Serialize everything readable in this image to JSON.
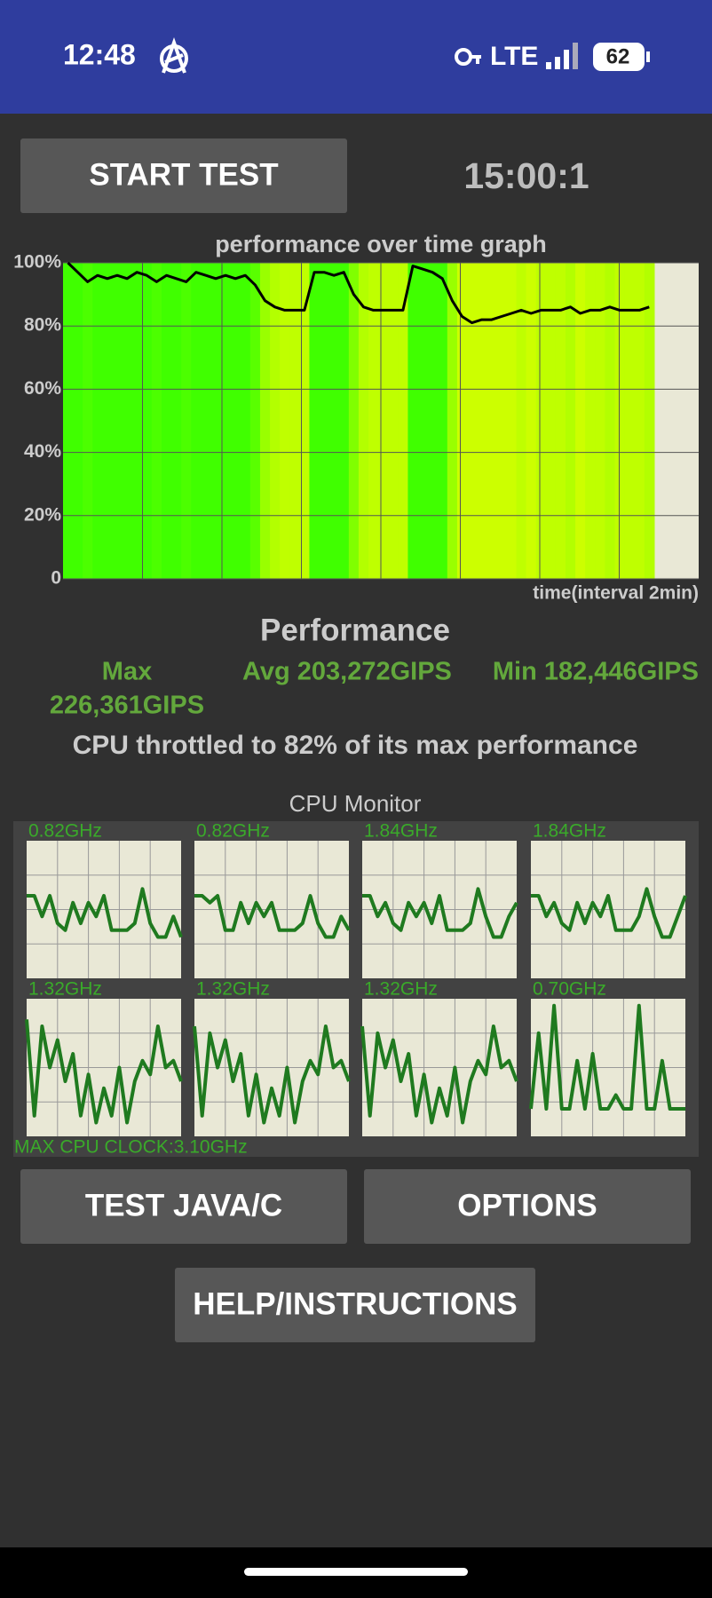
{
  "status_bar": {
    "time": "12:48",
    "network": "LTE",
    "battery": "62"
  },
  "start_button": "START TEST",
  "timer": "15:00:1",
  "chart_data": {
    "type": "line",
    "title": "performance over time graph",
    "x_label": "time(interval 2min)",
    "ylim": [
      0,
      100
    ],
    "yticks": [
      0,
      {
        "value": 20,
        "label": "20%"
      },
      {
        "value": 40,
        "label": "40%"
      },
      {
        "value": 60,
        "label": "60%"
      },
      {
        "value": 80,
        "label": "80%"
      },
      {
        "value": 100,
        "label": "100%"
      }
    ],
    "grid": true,
    "series": [
      {
        "color": "#000000",
        "values": [
          100,
          97,
          94,
          96,
          95,
          96,
          95,
          97,
          96,
          94,
          96,
          95,
          94,
          97,
          96,
          95,
          96,
          95,
          96,
          93,
          88,
          86,
          85,
          85,
          85,
          97,
          97,
          96,
          97,
          90,
          86,
          85,
          85,
          85,
          85,
          99,
          98,
          97,
          95,
          88,
          83,
          81,
          82,
          82,
          83,
          84,
          85,
          84,
          85,
          85,
          85,
          86,
          84,
          85,
          85,
          86,
          85,
          85,
          85,
          86
        ]
      }
    ]
  },
  "performance": {
    "heading": "Performance",
    "max_label": "Max",
    "max_value": "226,361GIPS",
    "avg": "Avg 203,272GIPS",
    "min": "Min 182,446GIPS",
    "throttle": "CPU throttled to 82% of its max performance"
  },
  "cpu_monitor": {
    "title": "CPU Monitor",
    "cores": [
      {
        "label": "0.82GHz",
        "values": [
          60,
          60,
          45,
          60,
          40,
          35,
          55,
          40,
          55,
          45,
          60,
          35,
          35,
          35,
          40,
          65,
          40,
          30,
          30,
          45,
          30
        ]
      },
      {
        "label": "0.82GHz",
        "values": [
          60,
          60,
          55,
          60,
          35,
          35,
          55,
          40,
          55,
          45,
          55,
          35,
          35,
          35,
          40,
          60,
          40,
          30,
          30,
          45,
          35
        ]
      },
      {
        "label": "1.84GHz",
        "values": [
          60,
          60,
          45,
          55,
          40,
          35,
          55,
          45,
          55,
          40,
          60,
          35,
          35,
          35,
          40,
          65,
          45,
          30,
          30,
          45,
          55
        ]
      },
      {
        "label": "1.84GHz",
        "values": [
          60,
          60,
          45,
          55,
          40,
          35,
          55,
          40,
          55,
          45,
          60,
          35,
          35,
          35,
          45,
          65,
          45,
          30,
          30,
          45,
          60
        ]
      },
      {
        "label": "1.32GHz",
        "values": [
          85,
          15,
          80,
          50,
          70,
          40,
          60,
          15,
          45,
          10,
          35,
          15,
          50,
          10,
          40,
          55,
          45,
          80,
          50,
          55,
          40
        ]
      },
      {
        "label": "1.32GHz",
        "values": [
          80,
          15,
          75,
          50,
          70,
          40,
          60,
          15,
          45,
          10,
          35,
          15,
          50,
          10,
          40,
          55,
          45,
          80,
          50,
          55,
          40
        ]
      },
      {
        "label": "1.32GHz",
        "values": [
          80,
          15,
          75,
          50,
          70,
          40,
          60,
          15,
          45,
          10,
          35,
          15,
          50,
          10,
          40,
          55,
          45,
          80,
          50,
          55,
          40
        ]
      },
      {
        "label": "0.70GHz",
        "values": [
          20,
          75,
          20,
          95,
          20,
          20,
          55,
          20,
          60,
          20,
          20,
          30,
          20,
          20,
          95,
          20,
          20,
          55,
          20,
          20,
          20
        ]
      }
    ],
    "max_clock": "MAX CPU CLOCK:3.10GHz"
  },
  "buttons": {
    "test": "TEST JAVA/C",
    "options": "OPTIONS",
    "help": "HELP/INSTRUCTIONS"
  }
}
